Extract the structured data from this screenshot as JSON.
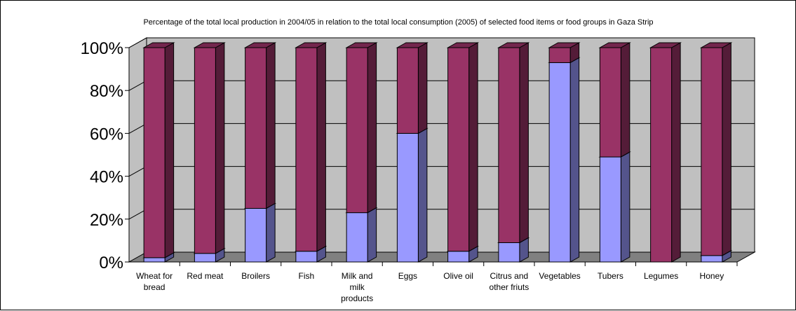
{
  "chart_data": {
    "type": "bar",
    "stacked": true,
    "percent_stacked": true,
    "three_d": true,
    "title": "Percentage of the total local production in 2004/05 in relation to the total local consumption (2005) of selected food items or food groups in Gaza Strip",
    "xlabel": "",
    "ylabel": "",
    "ylim": [
      0,
      100
    ],
    "y_ticks": [
      "0%",
      "20%",
      "40%",
      "60%",
      "80%",
      "100%"
    ],
    "grid": true,
    "legend": "none",
    "categories": [
      [
        "Wheat for",
        "bread"
      ],
      [
        "Red meat"
      ],
      [
        "Broilers"
      ],
      [
        "Fish"
      ],
      [
        "Milk and",
        "milk",
        "products"
      ],
      [
        "Eggs"
      ],
      [
        "Olive oil"
      ],
      [
        "Citrus and",
        "other friuts"
      ],
      [
        "Vegetables"
      ],
      [
        "Tubers"
      ],
      [
        "Legumes"
      ],
      [
        "Honey"
      ]
    ],
    "series": [
      {
        "color": "#9999ff",
        "values": [
          2,
          4,
          25,
          5,
          23,
          60,
          5,
          9,
          93,
          49,
          0,
          3
        ]
      },
      {
        "color": "#993366",
        "values": [
          98,
          96,
          75,
          95,
          77,
          40,
          95,
          91,
          7,
          51,
          100,
          97
        ]
      }
    ],
    "colors": {
      "wall": "#c0c0c0",
      "floor": "#808080",
      "gridline": "#000000"
    }
  }
}
